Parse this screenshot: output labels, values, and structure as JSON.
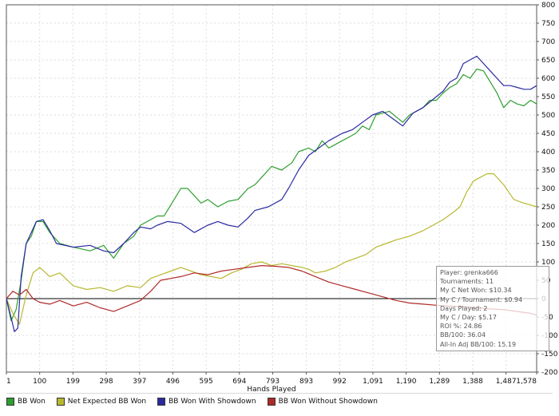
{
  "chart_data": {
    "type": "line",
    "title": "",
    "xlabel": "Hands Played",
    "ylabel": "",
    "xlim": [
      1,
      1578
    ],
    "ylim": [
      -200,
      800
    ],
    "x_ticks": [
      "1",
      "100",
      "199",
      "298",
      "397",
      "496",
      "595",
      "694",
      "793",
      "893",
      "992",
      "1,091",
      "1,190",
      "1,289",
      "1,388",
      "1,487",
      "1,578"
    ],
    "x_tick_values": [
      1,
      100,
      199,
      298,
      397,
      496,
      595,
      694,
      793,
      893,
      992,
      1091,
      1190,
      1289,
      1388,
      1487,
      1578
    ],
    "y_ticks": [
      "-200",
      "-150",
      "-100",
      "-50",
      "0",
      "50",
      "100",
      "150",
      "200",
      "250",
      "300",
      "350",
      "400",
      "450",
      "500",
      "550",
      "600",
      "650",
      "700",
      "750",
      "800"
    ],
    "y_tick_values": [
      -200,
      -150,
      -100,
      -50,
      0,
      50,
      100,
      150,
      200,
      250,
      300,
      350,
      400,
      450,
      500,
      550,
      600,
      650,
      700,
      750,
      800
    ],
    "zero_line": 0,
    "series": [
      {
        "name": "BB Won",
        "color": "#2e9e2e",
        "x": [
          1,
          15,
          30,
          45,
          60,
          75,
          90,
          110,
          130,
          160,
          200,
          250,
          290,
          320,
          350,
          380,
          400,
          430,
          450,
          470,
          480,
          500,
          520,
          540,
          560,
          580,
          600,
          630,
          660,
          690,
          700,
          720,
          740,
          760,
          790,
          820,
          850,
          870,
          900,
          920,
          940,
          960,
          980,
          1000,
          1020,
          1040,
          1060,
          1080,
          1100,
          1120,
          1140,
          1160,
          1180,
          1200,
          1220,
          1240,
          1260,
          1280,
          1300,
          1320,
          1340,
          1360,
          1380,
          1400,
          1420,
          1440,
          1460,
          1480,
          1500,
          1520,
          1540,
          1560,
          1578
        ],
        "y": [
          0,
          -60,
          -30,
          50,
          150,
          170,
          210,
          210,
          180,
          150,
          140,
          130,
          145,
          110,
          150,
          170,
          200,
          215,
          225,
          225,
          240,
          270,
          300,
          300,
          280,
          260,
          270,
          250,
          265,
          270,
          280,
          300,
          310,
          330,
          360,
          350,
          370,
          400,
          410,
          400,
          430,
          410,
          420,
          430,
          440,
          450,
          470,
          460,
          500,
          505,
          510,
          495,
          480,
          500,
          510,
          520,
          540,
          540,
          560,
          575,
          585,
          610,
          600,
          625,
          620,
          590,
          560,
          520,
          540,
          530,
          525,
          540,
          530
        ]
      },
      {
        "name": "Net Expected BB Won",
        "color": "#b8b830",
        "x": [
          1,
          20,
          40,
          60,
          80,
          100,
          130,
          160,
          200,
          240,
          280,
          320,
          360,
          400,
          430,
          460,
          490,
          520,
          550,
          580,
          610,
          640,
          670,
          700,
          730,
          760,
          790,
          820,
          850,
          880,
          900,
          920,
          950,
          980,
          1010,
          1040,
          1070,
          1100,
          1130,
          1160,
          1200,
          1240,
          1270,
          1300,
          1330,
          1350,
          1370,
          1390,
          1410,
          1430,
          1450,
          1480,
          1510,
          1540,
          1560,
          1578
        ],
        "y": [
          0,
          -40,
          -70,
          10,
          70,
          85,
          60,
          70,
          35,
          25,
          30,
          20,
          35,
          30,
          55,
          65,
          75,
          85,
          75,
          65,
          60,
          55,
          70,
          80,
          95,
          100,
          90,
          95,
          90,
          85,
          80,
          70,
          75,
          85,
          100,
          110,
          120,
          140,
          150,
          160,
          170,
          185,
          200,
          215,
          235,
          250,
          290,
          320,
          330,
          340,
          340,
          310,
          270,
          260,
          255,
          250
        ]
      },
      {
        "name": "BB Won With Showdown",
        "color": "#2a2aa0",
        "x": [
          1,
          12,
          25,
          35,
          45,
          60,
          75,
          90,
          110,
          130,
          150,
          200,
          250,
          290,
          320,
          350,
          380,
          400,
          430,
          450,
          480,
          520,
          560,
          600,
          630,
          660,
          690,
          720,
          740,
          780,
          820,
          840,
          870,
          900,
          930,
          960,
          1000,
          1030,
          1060,
          1090,
          1120,
          1150,
          1180,
          1210,
          1240,
          1280,
          1300,
          1320,
          1340,
          1360,
          1380,
          1400,
          1420,
          1440,
          1460,
          1480,
          1500,
          1520,
          1540,
          1560,
          1578
        ],
        "y": [
          0,
          -40,
          -90,
          -80,
          60,
          150,
          180,
          210,
          215,
          185,
          150,
          140,
          145,
          130,
          125,
          150,
          180,
          195,
          190,
          200,
          210,
          205,
          180,
          200,
          210,
          200,
          195,
          220,
          240,
          250,
          270,
          300,
          350,
          390,
          410,
          430,
          450,
          460,
          480,
          500,
          510,
          490,
          470,
          505,
          520,
          550,
          565,
          590,
          600,
          640,
          650,
          660,
          640,
          620,
          600,
          580,
          580,
          575,
          570,
          570,
          580
        ]
      },
      {
        "name": "BB Won Without Showdown",
        "color": "#b02a2a",
        "x": [
          1,
          20,
          40,
          60,
          80,
          100,
          130,
          160,
          200,
          240,
          280,
          320,
          360,
          400,
          430,
          460,
          490,
          520,
          560,
          600,
          640,
          680,
          720,
          760,
          800,
          840,
          880,
          920,
          960,
          1000,
          1040,
          1080,
          1120,
          1160,
          1200,
          1240,
          1280,
          1320,
          1360,
          1400,
          1440,
          1480,
          1520,
          1560,
          1578
        ],
        "y": [
          0,
          20,
          10,
          25,
          0,
          -10,
          -15,
          -5,
          -20,
          -10,
          -25,
          -35,
          -20,
          -5,
          20,
          50,
          55,
          60,
          70,
          65,
          75,
          80,
          85,
          90,
          88,
          85,
          75,
          60,
          45,
          35,
          25,
          15,
          5,
          -5,
          -12,
          -15,
          -18,
          -20,
          -22,
          -25,
          -28,
          -30,
          -35,
          -40,
          -45
        ]
      }
    ]
  },
  "legend": [
    {
      "label": "BB Won",
      "color": "#2e9e2e"
    },
    {
      "label": "Net Expected BB Won",
      "color": "#b8b830"
    },
    {
      "label": "BB Won With Showdown",
      "color": "#2a2aa0"
    },
    {
      "label": "BB Won Without Showdown",
      "color": "#b02a2a"
    }
  ],
  "stats": [
    "Player: grenka666",
    "Tournaments: 11",
    "My C Net Won: $10.34",
    "My C / Tournament: $0.94",
    "Days Played: 2",
    "My C / Day: $5.17",
    "ROI %: 24.86",
    "BB/100: 36.04",
    "All-In Adj BB/100: 15.19"
  ]
}
